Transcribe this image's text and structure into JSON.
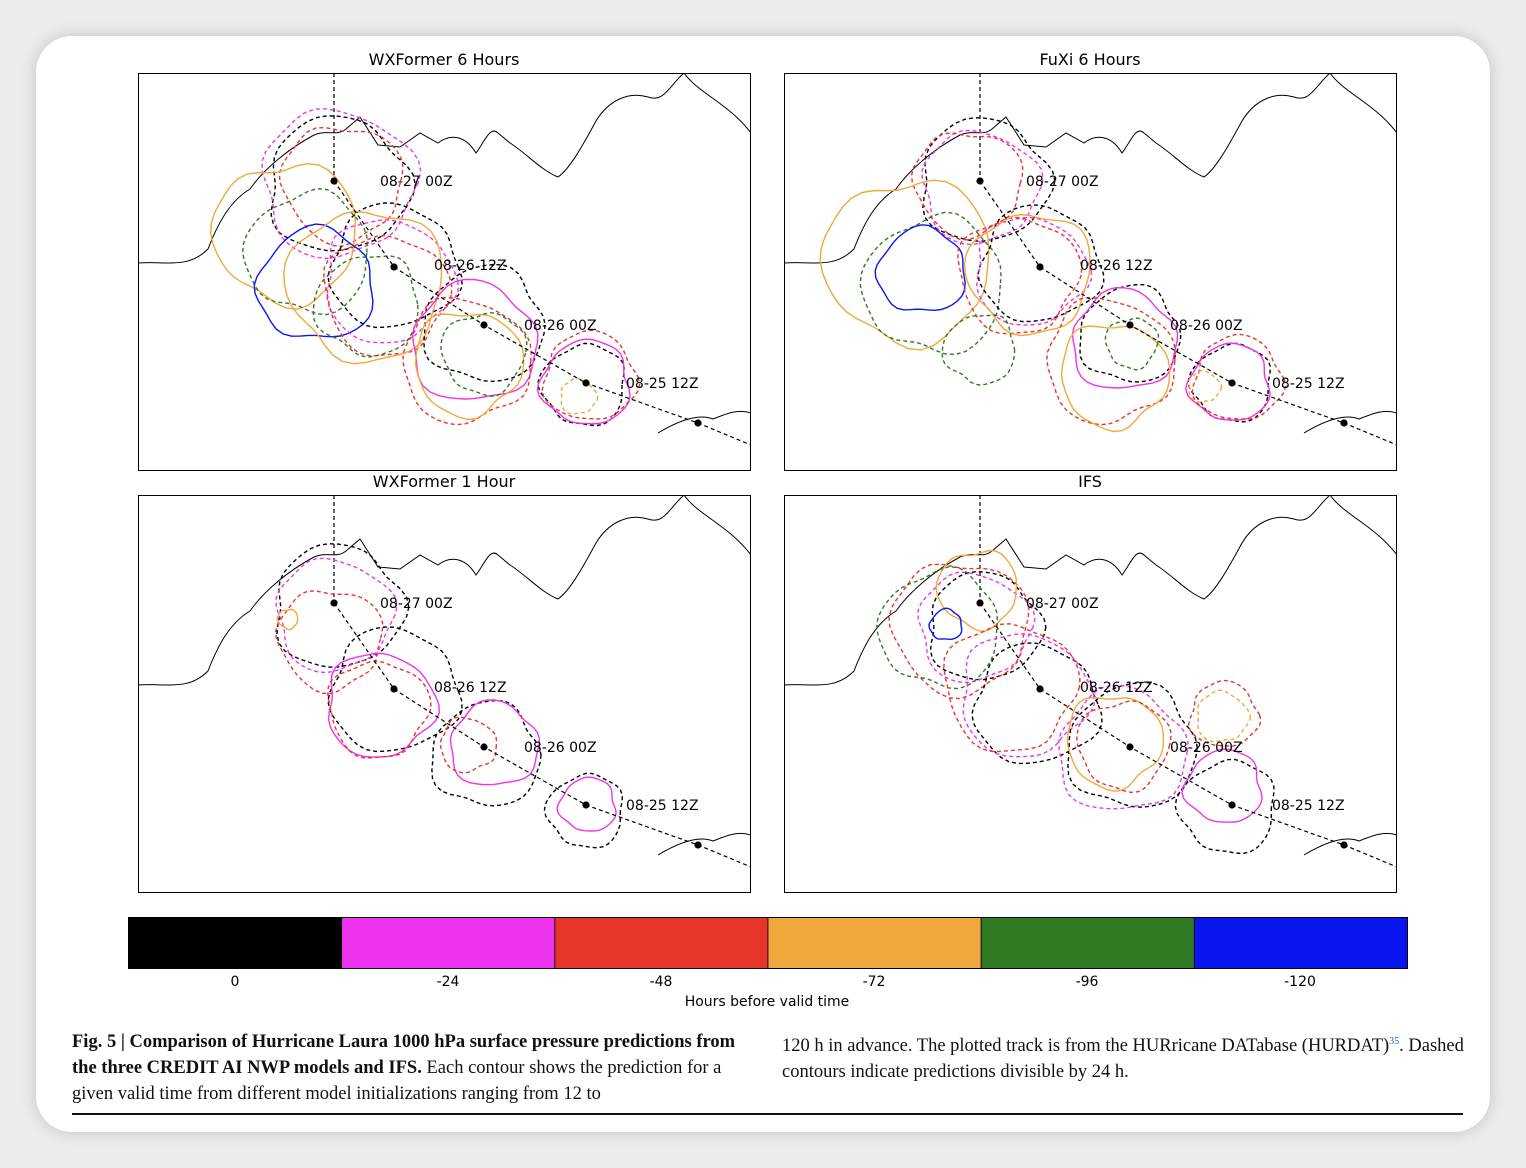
{
  "panels": [
    {
      "title": "WXFormer 6 Hours"
    },
    {
      "title": "FuXi 6 Hours"
    },
    {
      "title": "WXFormer 1 Hour"
    },
    {
      "title": "IFS"
    }
  ],
  "track_labels": [
    "08-27 00Z",
    "08-26 12Z",
    "08-26 00Z",
    "08-25 12Z"
  ],
  "colorbar": {
    "colors": [
      "#000000",
      "#ee33ee",
      "#e8352a",
      "#f0a83c",
      "#317a24",
      "#0a16f0"
    ],
    "tick_labels": [
      "0",
      "-24",
      "-48",
      "-72",
      "-96",
      "-120"
    ],
    "label": "Hours before valid time"
  },
  "caption": {
    "fig_label": "Fig. 5 | Comparison of Hurricane Laura 1000 hPa surface pressure predictions from the three CREDIT AI NWP models and IFS.",
    "text_1": " Each contour shows the prediction for a given valid time from different model initializations ranging from 12 to",
    "text_2": "120 h in advance. The plotted track is from the HURricane DATabase (HURDAT)",
    "ref": "35",
    "text_3": ". Dashed contours indicate predictions divisible by 24 h."
  }
}
